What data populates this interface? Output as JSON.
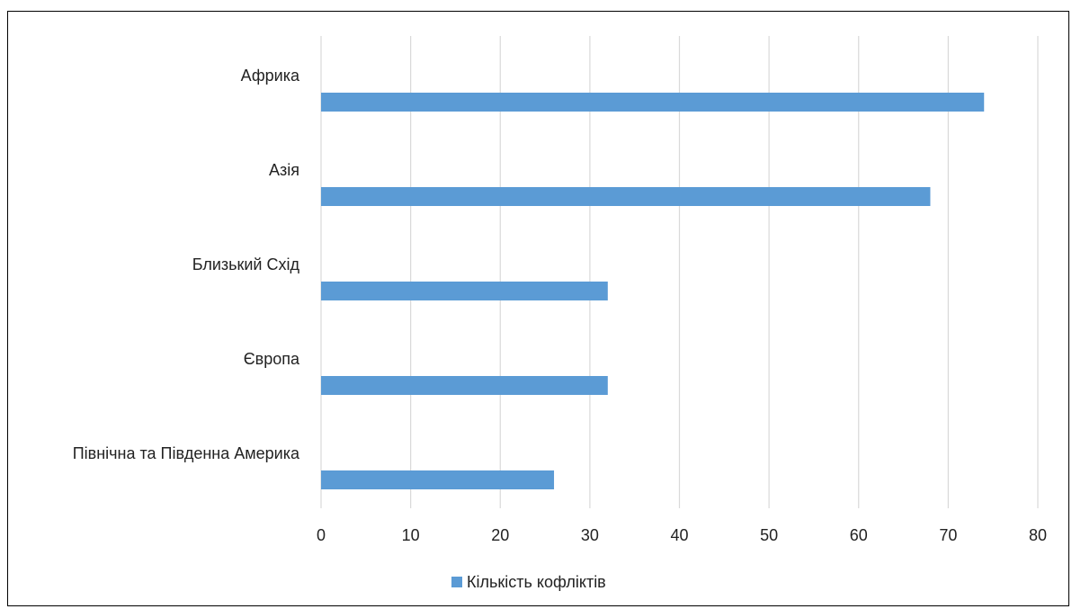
{
  "chart_data": {
    "type": "bar",
    "orientation": "horizontal",
    "categories": [
      "Африка",
      "Азія",
      "Близький Схід",
      "Європа",
      "Північна та Південна Америка"
    ],
    "series": [
      {
        "name": "Кількість кофліктів",
        "values": [
          74,
          68,
          32,
          32,
          26
        ],
        "color": "#5b9bd5"
      }
    ],
    "title": "",
    "xlabel": "",
    "ylabel": "",
    "xlim": [
      0,
      80
    ],
    "xticks": [
      "0",
      "10",
      "20",
      "30",
      "40",
      "50",
      "60",
      "70",
      "80"
    ],
    "grid": "vertical",
    "legend": "bottom"
  }
}
